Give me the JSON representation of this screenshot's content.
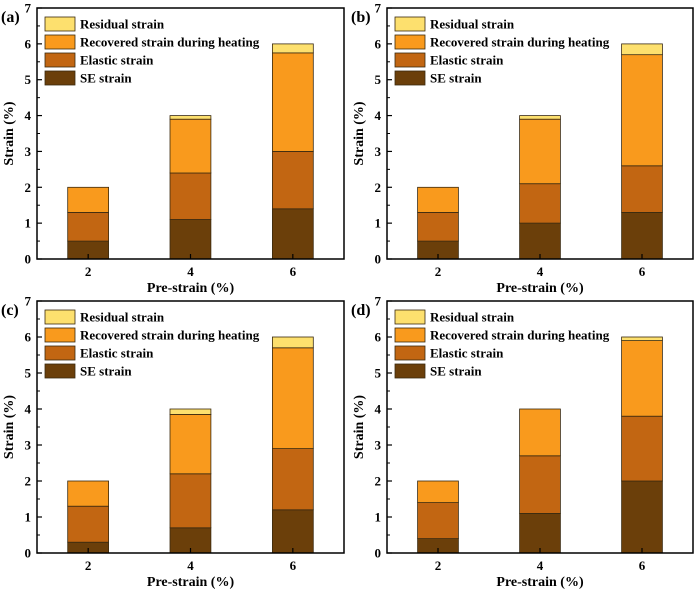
{
  "colors": {
    "SE strain": "#6b3f0a",
    "Elastic strain": "#c26612",
    "Recovered strain during heating": "#f99a1d",
    "Residual strain": "#fde06e"
  },
  "chart_data": [
    {
      "type": "bar",
      "stacked": true,
      "panel_label": "(a)",
      "categories": [
        "2",
        "4",
        "6"
      ],
      "series": [
        {
          "name": "SE strain",
          "values": [
            0.5,
            1.1,
            1.4
          ]
        },
        {
          "name": "Elastic strain",
          "values": [
            0.8,
            1.3,
            1.6
          ]
        },
        {
          "name": "Recovered strain during heating",
          "values": [
            0.7,
            1.5,
            2.75
          ]
        },
        {
          "name": "Residual strain",
          "values": [
            0.0,
            0.1,
            0.25
          ]
        }
      ],
      "xlabel": "Pre-strain (%)",
      "ylabel": "Strain (%)",
      "ylim": [
        0,
        7
      ],
      "yticks": [
        "0",
        "1",
        "2",
        "3",
        "4",
        "5",
        "6",
        "7"
      ],
      "legend_position": "top-left",
      "legend": [
        "Residual strain",
        "Recovered strain during heating",
        "Elastic strain",
        "SE strain"
      ]
    },
    {
      "type": "bar",
      "stacked": true,
      "panel_label": "(b)",
      "categories": [
        "2",
        "4",
        "6"
      ],
      "series": [
        {
          "name": "SE strain",
          "values": [
            0.5,
            1.0,
            1.3
          ]
        },
        {
          "name": "Elastic strain",
          "values": [
            0.8,
            1.1,
            1.3
          ]
        },
        {
          "name": "Recovered strain during heating",
          "values": [
            0.7,
            1.8,
            3.1
          ]
        },
        {
          "name": "Residual strain",
          "values": [
            0.0,
            0.1,
            0.3
          ]
        }
      ],
      "xlabel": "Pre-strain (%)",
      "ylabel": "Strain (%)",
      "ylim": [
        0,
        7
      ],
      "yticks": [
        "0",
        "1",
        "2",
        "3",
        "4",
        "5",
        "6",
        "7"
      ],
      "legend_position": "top-left",
      "legend": [
        "Residual strain",
        "Recovered strain during heating",
        "Elastic strain",
        "SE strain"
      ]
    },
    {
      "type": "bar",
      "stacked": true,
      "panel_label": "(c)",
      "categories": [
        "2",
        "4",
        "6"
      ],
      "series": [
        {
          "name": "SE strain",
          "values": [
            0.3,
            0.7,
            1.2
          ]
        },
        {
          "name": "Elastic strain",
          "values": [
            1.0,
            1.5,
            1.7
          ]
        },
        {
          "name": "Recovered strain during heating",
          "values": [
            0.7,
            1.65,
            2.8
          ]
        },
        {
          "name": "Residual strain",
          "values": [
            0.0,
            0.15,
            0.3
          ]
        }
      ],
      "xlabel": "Pre-strain (%)",
      "ylabel": "Strain (%)",
      "ylim": [
        0,
        7
      ],
      "yticks": [
        "0",
        "1",
        "2",
        "3",
        "4",
        "5",
        "6",
        "7"
      ],
      "legend_position": "top-left",
      "legend": [
        "Residual strain",
        "Recovered strain during heating",
        "Elastic strain",
        "SE strain"
      ]
    },
    {
      "type": "bar",
      "stacked": true,
      "panel_label": "(d)",
      "categories": [
        "2",
        "4",
        "6"
      ],
      "series": [
        {
          "name": "SE strain",
          "values": [
            0.4,
            1.1,
            2.0
          ]
        },
        {
          "name": "Elastic strain",
          "values": [
            1.0,
            1.6,
            1.8
          ]
        },
        {
          "name": "Recovered strain during heating",
          "values": [
            0.6,
            1.3,
            2.1
          ]
        },
        {
          "name": "Residual strain",
          "values": [
            0.0,
            0.0,
            0.1
          ]
        }
      ],
      "xlabel": "Pre-strain (%)",
      "ylabel": "Strain (%)",
      "ylim": [
        0,
        7
      ],
      "yticks": [
        "0",
        "1",
        "2",
        "3",
        "4",
        "5",
        "6",
        "7"
      ],
      "legend_position": "top-left",
      "legend": [
        "Residual strain",
        "Recovered strain during heating",
        "Elastic strain",
        "SE strain"
      ]
    }
  ]
}
